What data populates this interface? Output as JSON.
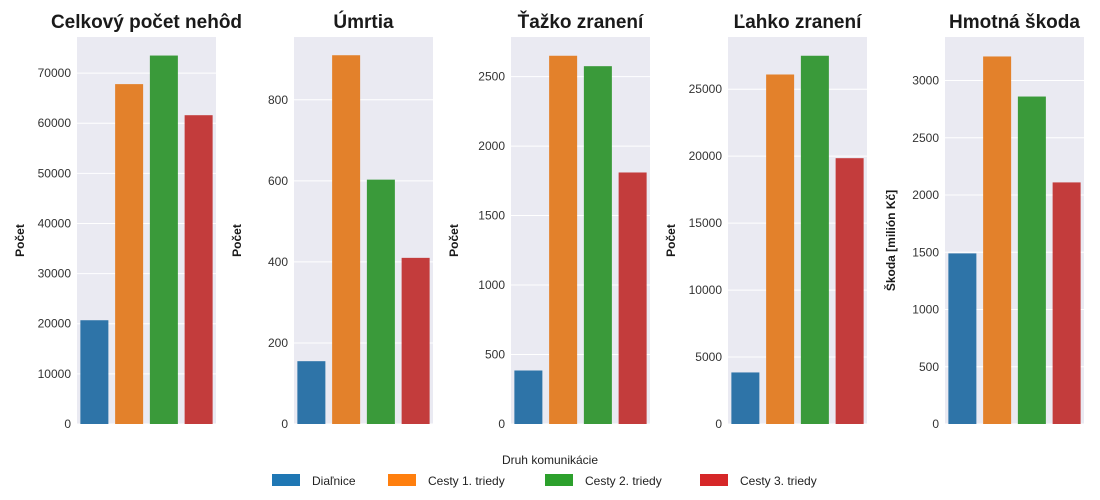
{
  "chart_data": [
    {
      "type": "bar",
      "title": "Celkový počet nehôd",
      "ylabel": "Počet",
      "categories": [
        "Diaľnice",
        "Cesty 1. triedy",
        "Cesty 2. triedy",
        "Cesty 3. triedy"
      ],
      "values": [
        20700,
        67800,
        73500,
        61600
      ],
      "ylim": [
        0,
        77200
      ],
      "yticks": [
        0,
        10000,
        20000,
        30000,
        40000,
        50000,
        60000,
        70000
      ],
      "grid": true
    },
    {
      "type": "bar",
      "title": "Úmrtia",
      "ylabel": "Počet",
      "categories": [
        "Diaľnice",
        "Cesty 1. triedy",
        "Cesty 2. triedy",
        "Cesty 3. triedy"
      ],
      "values": [
        155,
        910,
        603,
        410
      ],
      "ylim": [
        0,
        955
      ],
      "yticks": [
        0,
        200,
        400,
        600,
        800
      ],
      "grid": true
    },
    {
      "type": "bar",
      "title": "Ťažko zranení",
      "ylabel": "Počet",
      "categories": [
        "Diaľnice",
        "Cesty 1. triedy",
        "Cesty 2. triedy",
        "Cesty 3. triedy"
      ],
      "values": [
        385,
        2650,
        2575,
        1810
      ],
      "ylim": [
        0,
        2785
      ],
      "yticks": [
        0,
        500,
        1000,
        1500,
        2000,
        2500
      ],
      "grid": true
    },
    {
      "type": "bar",
      "title": "Ľahko zranení",
      "ylabel": "Počet",
      "categories": [
        "Diaľnice",
        "Cesty 1. triedy",
        "Cesty 2. triedy",
        "Cesty 3. triedy"
      ],
      "values": [
        3850,
        26100,
        27500,
        19850
      ],
      "ylim": [
        0,
        28900
      ],
      "yticks": [
        0,
        5000,
        10000,
        15000,
        20000,
        25000
      ],
      "grid": true
    },
    {
      "type": "bar",
      "title": "Hmotná škoda",
      "ylabel": "Škoda [milión Kč]",
      "categories": [
        "Diaľnice",
        "Cesty 1. triedy",
        "Cesty 2. triedy",
        "Cesty 3. triedy"
      ],
      "values": [
        1490,
        3210,
        2860,
        2110
      ],
      "ylim": [
        0,
        3380
      ],
      "yticks": [
        0,
        500,
        1000,
        1500,
        2000,
        2500,
        3000
      ],
      "grid": true
    }
  ],
  "legend": {
    "title": "Druh komunikácie",
    "placement": "bottom-center",
    "items": [
      "Diaľnice",
      "Cesty 1. triedy",
      "Cesty 2. triedy",
      "Cesty 3. triedy"
    ]
  },
  "colors": {
    "bars": [
      "#2e74a8",
      "#e3812b",
      "#3a9a3a",
      "#c33c3c"
    ],
    "legend_patches": [
      "#1f77b4",
      "#ff7f0e",
      "#2ca02c",
      "#d62728"
    ],
    "axes_background": "#eaeaf2",
    "grid": "#ffffff"
  }
}
